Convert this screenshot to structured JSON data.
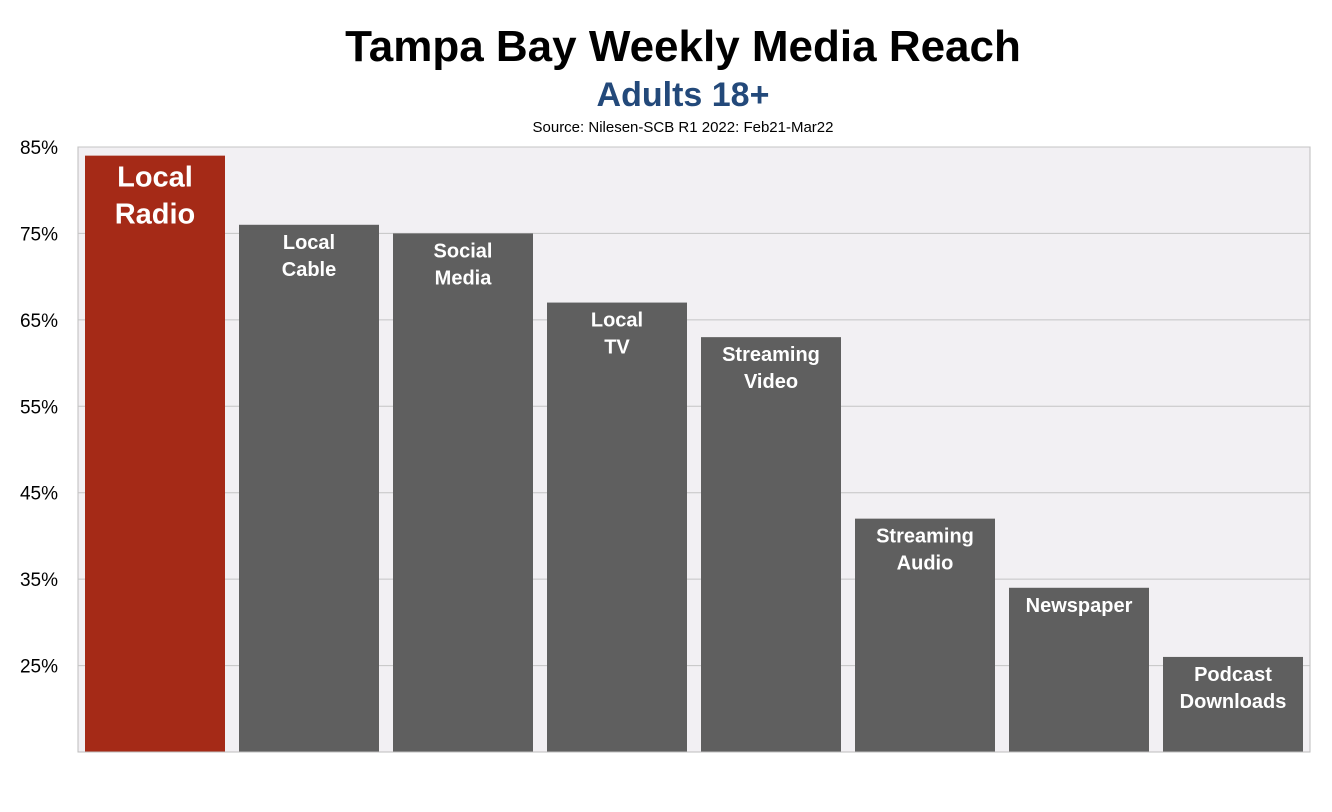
{
  "chart_data": {
    "type": "bar",
    "title": "Tampa Bay Weekly Media Reach",
    "subtitle": "Adults 18+",
    "source": "Source: Nilesen-SCB R1 2022: Feb21-Mar22",
    "categories": [
      [
        "Local",
        "Radio"
      ],
      [
        "Local",
        "Cable"
      ],
      [
        "Social",
        "Media"
      ],
      [
        "Local",
        "TV"
      ],
      [
        "Streaming",
        "Video"
      ],
      [
        "Streaming",
        "Audio"
      ],
      [
        "Newspaper"
      ],
      [
        "Podcast",
        "Downloads"
      ]
    ],
    "values": [
      84,
      76,
      75,
      67,
      63,
      42,
      34,
      26
    ],
    "ylim": [
      15,
      85
    ],
    "yticks": [
      85,
      75,
      65,
      55,
      45,
      35,
      25
    ],
    "ytick_labels": [
      "85%",
      "75%",
      "65%",
      "55%",
      "45%",
      "35%",
      "25%"
    ],
    "grid": true,
    "colors": {
      "highlight": "#a52a17",
      "bar": "#5f5f5f",
      "plot_bg": "#f2f0f3",
      "grid": "#c4c4c4",
      "subtitle": "#23497a"
    }
  }
}
